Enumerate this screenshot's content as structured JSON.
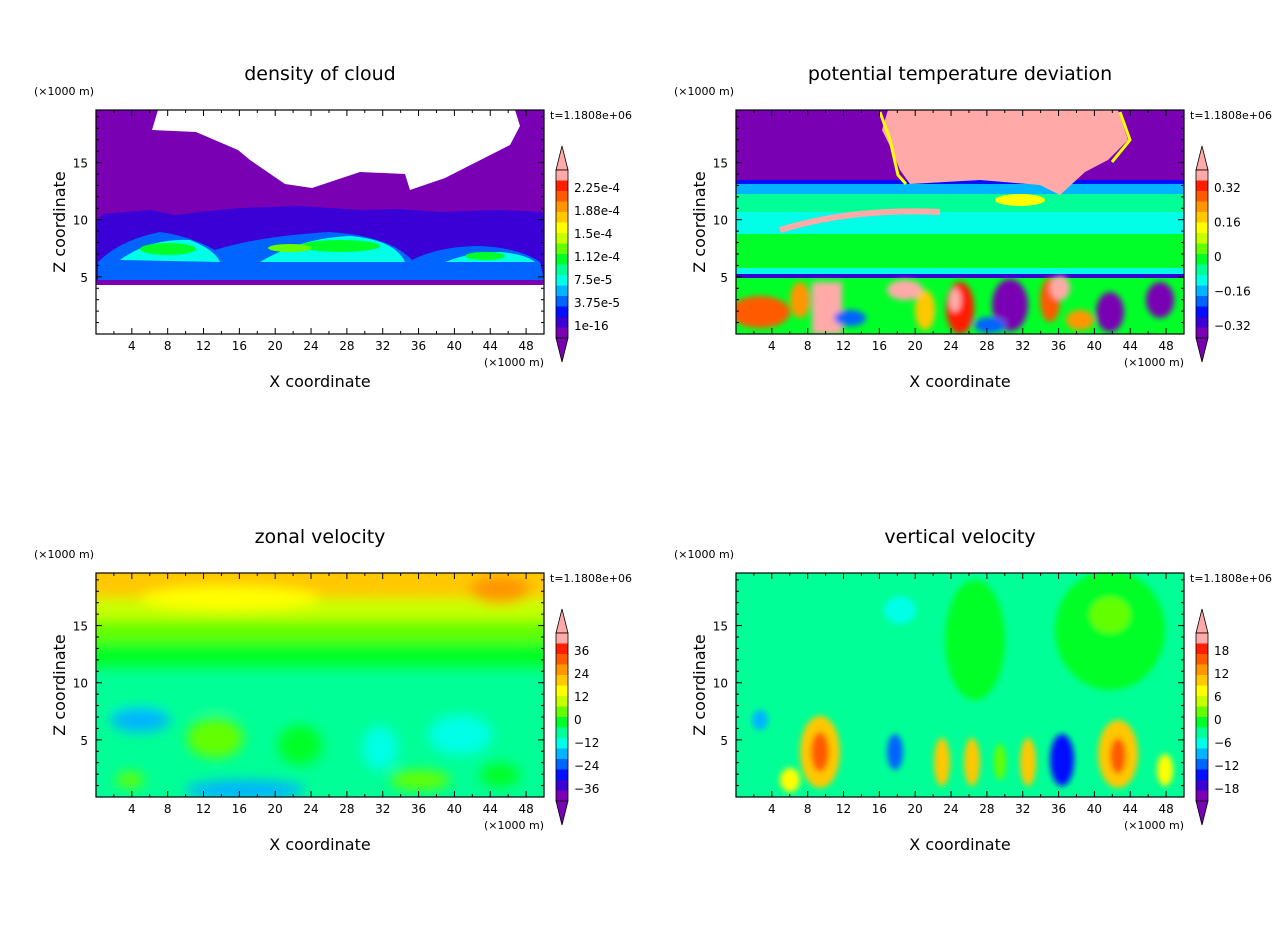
{
  "figure": {
    "panels": [
      {
        "title": "density of cloud",
        "time_label": "t=1.1808e+06",
        "xlabel": "X coordinate",
        "ylabel": "Z coordinate",
        "x_units": "(×1000 m)",
        "y_units": "(×1000 m)",
        "colorbar_labels": [
          "2.25e-4",
          "1.88e-4",
          "1.5e-4",
          "1.12e-4",
          "7.5e-5",
          "3.75e-5",
          "1e-16"
        ]
      },
      {
        "title": "potential temperature deviation",
        "time_label": "t=1.1808e+06",
        "xlabel": "X coordinate",
        "ylabel": "Z coordinate",
        "x_units": "(×1000 m)",
        "y_units": "(×1000 m)",
        "colorbar_labels": [
          "0.32",
          "0.16",
          "0",
          "−0.16",
          "−0.32"
        ]
      },
      {
        "title": "zonal velocity",
        "time_label": "t=1.1808e+06",
        "xlabel": "X coordinate",
        "ylabel": "Z coordinate",
        "x_units": "(×1000 m)",
        "y_units": "(×1000 m)",
        "colorbar_labels": [
          "36",
          "24",
          "12",
          "0",
          "−12",
          "−24",
          "−36"
        ]
      },
      {
        "title": "vertical velocity",
        "time_label": "t=1.1808e+06",
        "xlabel": "X coordinate",
        "ylabel": "Z coordinate",
        "x_units": "(×1000 m)",
        "y_units": "(×1000 m)",
        "colorbar_labels": [
          "18",
          "12",
          "6",
          "0",
          "−6",
          "−12",
          "−18"
        ]
      }
    ]
  },
  "chart_data": [
    {
      "type": "heatmap",
      "title": "density of cloud",
      "xlabel": "X coordinate",
      "ylabel": "Z coordinate",
      "xlim": [
        0,
        50
      ],
      "ylim": [
        0,
        19.6
      ],
      "x_ticks": [
        4,
        8,
        12,
        16,
        20,
        24,
        28,
        32,
        36,
        40,
        44,
        48
      ],
      "y_ticks": [
        5,
        10,
        15
      ],
      "colorbar_ticks": [
        0.000225,
        0.000188,
        0.00015,
        0.000112,
        7.5e-05,
        3.75e-05,
        1e-16
      ]
    },
    {
      "type": "heatmap",
      "title": "potential temperature deviation",
      "xlabel": "X coordinate",
      "ylabel": "Z coordinate",
      "xlim": [
        0,
        50
      ],
      "ylim": [
        0,
        19.6
      ],
      "x_ticks": [
        4,
        8,
        12,
        16,
        20,
        24,
        28,
        32,
        36,
        40,
        44,
        48
      ],
      "y_ticks": [
        5,
        10,
        15
      ],
      "colorbar_ticks": [
        0.32,
        0.16,
        0,
        -0.16,
        -0.32
      ]
    },
    {
      "type": "heatmap",
      "title": "zonal velocity",
      "xlabel": "X coordinate",
      "ylabel": "Z coordinate",
      "xlim": [
        0,
        50
      ],
      "ylim": [
        0,
        19.6
      ],
      "x_ticks": [
        4,
        8,
        12,
        16,
        20,
        24,
        28,
        32,
        36,
        40,
        44,
        48
      ],
      "y_ticks": [
        5,
        10,
        15
      ],
      "colorbar_ticks": [
        36,
        24,
        12,
        0,
        -12,
        -24,
        -36
      ]
    },
    {
      "type": "heatmap",
      "title": "vertical velocity",
      "xlabel": "X coordinate",
      "ylabel": "Z coordinate",
      "xlim": [
        0,
        50
      ],
      "ylim": [
        0,
        19.6
      ],
      "x_ticks": [
        4,
        8,
        12,
        16,
        20,
        24,
        28,
        32,
        36,
        40,
        44,
        48
      ],
      "y_ticks": [
        5,
        10,
        15
      ],
      "colorbar_ticks": [
        18,
        12,
        6,
        0,
        -6,
        -12,
        -18
      ]
    }
  ],
  "palette": [
    "#7a00b4",
    "#3a00d6",
    "#0010ff",
    "#0064ff",
    "#00b4ff",
    "#00ffe6",
    "#00ff96",
    "#00ff28",
    "#64ff00",
    "#c8ff00",
    "#ffff00",
    "#ffc800",
    "#ff9600",
    "#ff5a00",
    "#ff1e00",
    "#ffaaa8"
  ]
}
